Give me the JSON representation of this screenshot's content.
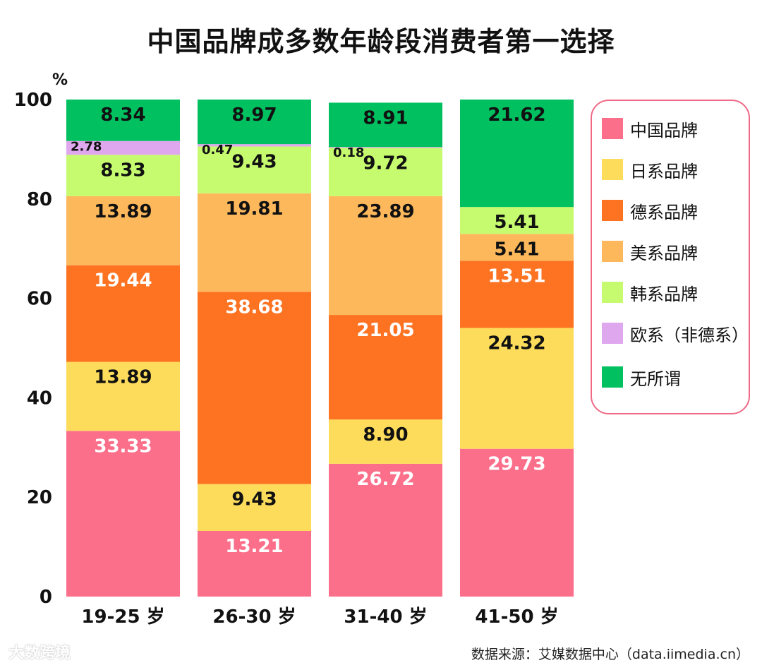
{
  "title": "中国品牌成多数年龄段消费者第一选择",
  "source": "数据来源：艾媒数据中心（data.iimedia.cn）",
  "watermark": "大数跨境",
  "colors": {
    "中国品牌": "#fb6f8b",
    "日系品牌": "#fddc5c",
    "德系品牌": "#fd7322",
    "美系品牌": "#fdb85c",
    "韩系品牌": "#c6fb6f",
    "欧系（非德系）": "#dfa8ee",
    "无所谓": "#00c060",
    "legend_border": "#f06a86"
  },
  "chart_data": {
    "type": "bar",
    "stacked": true,
    "title": "中国品牌成多数年龄段消费者第一选择",
    "ylabel": "%",
    "xlabel": "",
    "ylim": [
      0,
      100
    ],
    "yticks": [
      0,
      20,
      40,
      60,
      80,
      100
    ],
    "grid": false,
    "legend_position": "right",
    "categories": [
      "19-25 岁",
      "26-30 岁",
      "31-40 岁",
      "41-50 岁"
    ],
    "series": [
      {
        "name": "中国品牌",
        "values": [
          33.33,
          13.21,
          26.72,
          29.73
        ],
        "labels": [
          "33.33",
          "13.21",
          "26.72",
          "29.73"
        ]
      },
      {
        "name": "日系品牌",
        "values": [
          13.89,
          9.43,
          8.9,
          24.32
        ],
        "labels": [
          "13.89",
          "9.43",
          "8.90",
          "24.32"
        ]
      },
      {
        "name": "德系品牌",
        "values": [
          19.44,
          38.68,
          21.05,
          13.51
        ],
        "labels": [
          "19.44",
          "38.68",
          "21.05",
          "13.51"
        ]
      },
      {
        "name": "美系品牌",
        "values": [
          13.89,
          19.81,
          23.89,
          5.41
        ],
        "labels": [
          "13.89",
          "19.81",
          "23.89",
          "5.41"
        ]
      },
      {
        "name": "韩系品牌",
        "values": [
          8.33,
          9.43,
          9.72,
          5.41
        ],
        "labels": [
          "8.33",
          "9.43",
          "9.72",
          "5.41"
        ]
      },
      {
        "name": "欧系（非德系）",
        "values": [
          2.78,
          0.47,
          0.18,
          0
        ],
        "labels": [
          "2.78",
          "0.47",
          "0.18",
          ""
        ]
      },
      {
        "name": "无所谓",
        "values": [
          8.34,
          8.97,
          8.91,
          21.62
        ],
        "labels": [
          "8.34",
          "8.97",
          "8.91",
          "21.62"
        ]
      }
    ]
  }
}
